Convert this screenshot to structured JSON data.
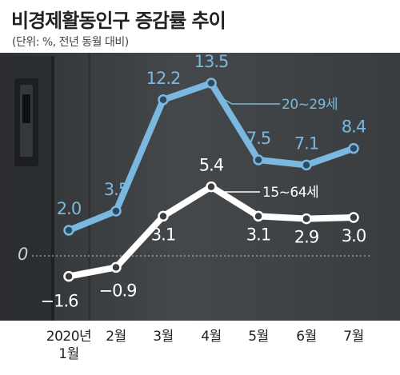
{
  "title": "비경제활동인구 증감률 추이",
  "subtitle": "(단위: %, 전년 동월 대비)",
  "chart_data": {
    "type": "line",
    "categories": [
      "2020년\n1월",
      "2월",
      "3월",
      "4월",
      "5월",
      "6월",
      "7월"
    ],
    "series": [
      {
        "name": "20~29세",
        "values": [
          2.0,
          3.5,
          12.2,
          13.5,
          7.5,
          7.1,
          8.4
        ],
        "labels": [
          "2.0",
          "3.5",
          "12.2",
          "13.5",
          "7.5",
          "7.1",
          "8.4"
        ],
        "color": "#7ab8df"
      },
      {
        "name": "15~64세",
        "values": [
          -1.6,
          -0.9,
          3.1,
          5.4,
          3.1,
          2.9,
          3.0
        ],
        "labels": [
          "−1.6",
          "−0.9",
          "3.1",
          "5.4",
          "3.1",
          "2.9",
          "3.0"
        ],
        "color": "#ffffff"
      }
    ],
    "zero_line_label": "0",
    "ylim": [
      -2.5,
      15.5
    ],
    "grid": false,
    "background": "photo of a dark gray door",
    "colors": {
      "panel": "#3e4143",
      "zero_line": "#aaaaaa",
      "axis_text": "#222222"
    }
  }
}
